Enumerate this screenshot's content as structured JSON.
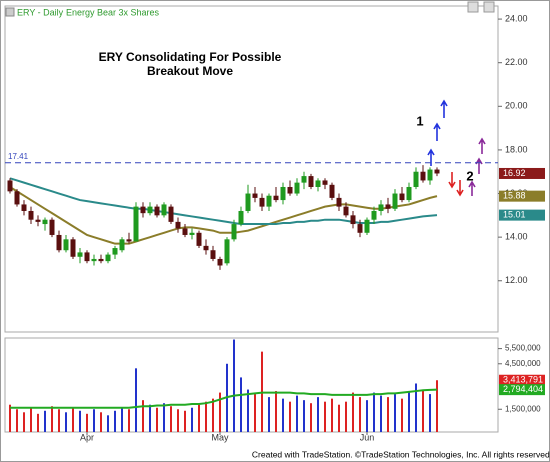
{
  "footer": "Created with TradeStation. ©TradeStation Technologies, Inc. All rights reserved.",
  "chart_data": [
    {
      "type": "candlestick",
      "title": "ERY - Daily",
      "subtitle": "Energy Bear 3x Shares",
      "up_color": "#1f9a1f",
      "down_color": "#5a0f0f",
      "open": [
        16.6,
        16.1,
        15.5,
        15.2,
        14.8,
        14.6,
        14.8,
        14.1,
        13.4,
        13.9,
        13.1,
        13.3,
        12.9,
        13.0,
        12.9,
        13.2,
        13.4,
        13.9,
        13.8,
        15.4,
        15.1,
        15.4,
        15.0,
        15.4,
        14.7,
        14.4,
        14.1,
        14.2,
        13.6,
        13.4,
        13.0,
        12.8,
        13.9,
        14.6,
        15.2,
        16.0,
        15.8,
        15.4,
        15.9,
        15.7,
        16.3,
        16.0,
        16.5,
        16.8,
        16.3,
        16.6,
        16.4,
        15.8,
        15.4,
        15.0,
        14.6,
        14.2,
        14.8,
        15.2,
        15.5,
        15.3,
        16.0,
        15.7,
        16.3,
        17.0,
        16.6,
        17.1
      ],
      "high": [
        16.7,
        16.2,
        15.7,
        15.4,
        15.0,
        14.9,
        14.9,
        14.3,
        14.1,
        14.0,
        13.5,
        13.4,
        13.2,
        13.2,
        13.3,
        13.6,
        14.0,
        14.2,
        15.6,
        15.6,
        15.6,
        15.5,
        15.6,
        15.5,
        14.9,
        14.6,
        14.4,
        14.3,
        13.9,
        13.6,
        13.1,
        14.0,
        14.8,
        15.4,
        16.4,
        16.3,
        16.0,
        16.0,
        16.3,
        16.5,
        16.6,
        16.7,
        17.0,
        16.9,
        16.7,
        16.7,
        16.5,
        16.0,
        15.6,
        15.2,
        14.8,
        14.9,
        15.4,
        15.7,
        15.8,
        16.2,
        16.3,
        16.5,
        17.2,
        17.3,
        17.2,
        17.2
      ],
      "low": [
        16.0,
        15.4,
        15.0,
        14.6,
        14.5,
        14.3,
        14.0,
        13.3,
        13.3,
        13.0,
        12.8,
        12.8,
        12.7,
        12.8,
        12.8,
        13.0,
        13.3,
        13.7,
        13.8,
        14.9,
        15.0,
        14.9,
        14.9,
        14.6,
        14.2,
        14.0,
        13.9,
        13.5,
        13.2,
        12.9,
        12.5,
        12.7,
        13.8,
        14.5,
        15.1,
        15.6,
        15.2,
        15.2,
        15.6,
        15.5,
        15.9,
        15.9,
        16.2,
        16.2,
        16.1,
        16.2,
        15.7,
        15.2,
        14.9,
        14.4,
        14.0,
        14.1,
        14.6,
        15.0,
        15.1,
        15.2,
        15.6,
        15.6,
        16.2,
        16.5,
        16.4,
        16.8
      ],
      "close": [
        16.1,
        15.5,
        15.2,
        14.8,
        14.7,
        14.8,
        14.1,
        13.4,
        13.9,
        13.1,
        13.3,
        12.9,
        13.0,
        12.9,
        13.2,
        13.5,
        13.9,
        13.8,
        15.4,
        15.1,
        15.4,
        15.0,
        15.5,
        14.7,
        14.4,
        14.1,
        14.2,
        13.6,
        13.4,
        13.0,
        12.7,
        13.9,
        14.6,
        15.2,
        16.0,
        15.8,
        15.4,
        15.9,
        15.7,
        16.3,
        16.0,
        16.5,
        16.8,
        16.3,
        16.6,
        16.4,
        15.8,
        15.4,
        15.0,
        14.6,
        14.2,
        14.8,
        15.2,
        15.5,
        15.3,
        16.0,
        15.7,
        16.3,
        17.0,
        16.6,
        17.1,
        16.92
      ],
      "close_flag_color": "#8b1a1a",
      "series": [
        {
          "color": "#8b7d2a",
          "values": [
            16.3,
            16.1,
            15.9,
            15.7,
            15.5,
            15.3,
            15.1,
            14.9,
            14.7,
            14.5,
            14.3,
            14.1,
            14.0,
            13.9,
            13.8,
            13.7,
            13.7,
            13.7,
            13.8,
            13.9,
            14.0,
            14.1,
            14.2,
            14.3,
            14.4,
            14.45,
            14.45,
            14.4,
            14.35,
            14.3,
            14.2,
            14.2,
            14.2,
            14.25,
            14.3,
            14.4,
            14.5,
            14.6,
            14.7,
            14.8,
            14.9,
            15.0,
            15.1,
            15.2,
            15.3,
            15.4,
            15.45,
            15.5,
            15.5,
            15.45,
            15.4,
            15.35,
            15.3,
            15.3,
            15.35,
            15.4,
            15.45,
            15.5,
            15.6,
            15.7,
            15.8,
            15.88
          ]
        },
        {
          "color": "#2a8a8a",
          "values": [
            16.7,
            16.6,
            16.5,
            16.4,
            16.3,
            16.2,
            16.1,
            16.0,
            15.9,
            15.8,
            15.7,
            15.65,
            15.6,
            15.55,
            15.5,
            15.45,
            15.4,
            15.35,
            15.3,
            15.3,
            15.25,
            15.2,
            15.15,
            15.1,
            15.05,
            15.0,
            14.95,
            14.9,
            14.85,
            14.8,
            14.75,
            14.7,
            14.65,
            14.6,
            14.6,
            14.6,
            14.6,
            14.6,
            14.6,
            14.65,
            14.65,
            14.7,
            14.7,
            14.75,
            14.75,
            14.8,
            14.8,
            14.8,
            14.75,
            14.7,
            14.65,
            14.65,
            14.65,
            14.7,
            14.7,
            14.75,
            14.8,
            14.85,
            14.9,
            14.95,
            14.98,
            15.01
          ]
        }
      ],
      "reference_line": {
        "value": 17.41,
        "color": "#3344bb"
      },
      "annotations": [
        "ERY Consolidating For Possible",
        "Breakout Move",
        "1",
        "2"
      ],
      "ylim": [
        9.65,
        24.6
      ],
      "yticks": [
        {
          "value": 12,
          "label": "12.00"
        },
        {
          "value": 14,
          "label": "14.00"
        },
        {
          "value": 16,
          "label": "16.00"
        },
        {
          "value": 18,
          "label": "18.00"
        },
        {
          "value": 20,
          "label": "20.00"
        },
        {
          "value": 22,
          "label": "22.00"
        },
        {
          "value": 24,
          "label": "24.00"
        }
      ]
    },
    {
      "type": "bar",
      "up_color": "#2233cc",
      "down_color": "#dd2222",
      "categories": [
        null,
        null,
        null,
        null,
        null,
        null,
        null,
        null,
        null,
        null,
        null,
        "Apr",
        null,
        null,
        null,
        null,
        null,
        null,
        null,
        null,
        null,
        null,
        null,
        null,
        null,
        null,
        null,
        null,
        null,
        null,
        "May",
        null,
        null,
        null,
        null,
        null,
        null,
        null,
        null,
        null,
        null,
        null,
        null,
        null,
        null,
        null,
        null,
        null,
        null,
        null,
        null,
        "Jun",
        null,
        null,
        null,
        null,
        null,
        null,
        null,
        null,
        null,
        null
      ],
      "series": [
        {
          "values": [
            1800000,
            1500000,
            1300000,
            1600000,
            1200000,
            1400000,
            1700000,
            1500000,
            1300000,
            1600000,
            1400000,
            1200000,
            1500000,
            1300000,
            1100000,
            1400000,
            1600000,
            1500000,
            4200000,
            2100000,
            1800000,
            1600000,
            1900000,
            1700000,
            1500000,
            1400000,
            1600000,
            1800000,
            2000000,
            2200000,
            2600000,
            4500000,
            6100000,
            3600000,
            2800000,
            2500000,
            5300000,
            2300000,
            2700000,
            2200000,
            2000000,
            2400000,
            2100000,
            1900000,
            2300000,
            2000000,
            2200000,
            1800000,
            2000000,
            2600000,
            2300000,
            2100000,
            2600000,
            2400000,
            2300000,
            2500000,
            2200000,
            2700000,
            3200000,
            2800000,
            2500000,
            3413791
          ],
          "value_labels": {
            "61": "3,413,791"
          },
          "flag_color": "#dd2222"
        },
        {
          "kind": "line",
          "color": "#22aa22",
          "values": [
            1600000,
            1600000,
            1600000,
            1600000,
            1600000,
            1600000,
            1600000,
            1600000,
            1600000,
            1600000,
            1600000,
            1600000,
            1600000,
            1600000,
            1600000,
            1600000,
            1600000,
            1600000,
            1650000,
            1700000,
            1700000,
            1750000,
            1750000,
            1800000,
            1800000,
            1800000,
            1850000,
            1850000,
            1900000,
            2000000,
            2150000,
            2300000,
            2400000,
            2450000,
            2500000,
            2550000,
            2600000,
            2600000,
            2600000,
            2600000,
            2600000,
            2550000,
            2550000,
            2500000,
            2500000,
            2500000,
            2450000,
            2450000,
            2450000,
            2450000,
            2450000,
            2450000,
            2500000,
            2500000,
            2550000,
            2550000,
            2600000,
            2650000,
            2700000,
            2750000,
            2780000,
            2794404
          ],
          "value_labels": {
            "61": "2,794,404"
          }
        }
      ],
      "ylim": [
        0,
        6200000
      ],
      "yticks": [
        {
          "value": 1500000,
          "label": "1,500,000"
        },
        {
          "value": 4500000,
          "label": "4,500,000"
        },
        {
          "value": 5500000,
          "label": "5,500,000"
        }
      ]
    }
  ]
}
